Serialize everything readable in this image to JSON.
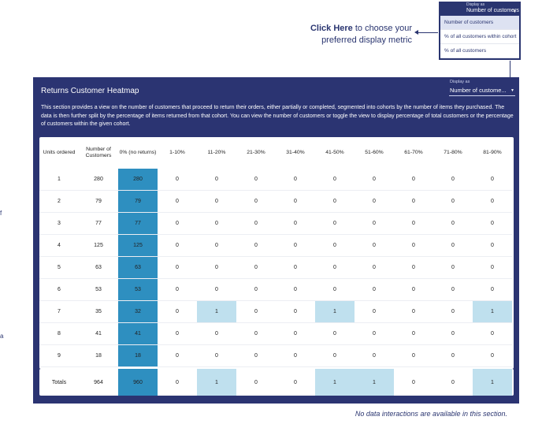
{
  "popup": {
    "label": "Display as",
    "value": "Number of customers",
    "options": [
      "Number of customers",
      "% of all customers within cohort",
      "% of all customers"
    ]
  },
  "callout": {
    "bold": "Click Here",
    "text": " to choose your preferred display metric"
  },
  "panel": {
    "title": "Returns Customer Heatmap",
    "select_label": "Display as",
    "select_value": "Number of custome...",
    "description": "This section provides a view on the number of customers that proceed to return their orders, either partially or completed, segmented into cohorts by the number of items they purchased. The data is then further split by the percentage of items returned from that cohort. You can view the number of customers or toggle the view to display percentage of total customers or the percentage of customers within the given cohort."
  },
  "table": {
    "headers": [
      "Units ordered",
      "Number of Customers",
      "0% (no returns)",
      "1-10%",
      "11-20%",
      "21-30%",
      "31-40%",
      "41-50%",
      "51-60%",
      "61-70%",
      "71-80%",
      "81-90%"
    ],
    "rows": [
      [
        "1",
        "280",
        "280",
        "0",
        "0",
        "0",
        "0",
        "0",
        "0",
        "0",
        "0",
        "0"
      ],
      [
        "2",
        "79",
        "79",
        "0",
        "0",
        "0",
        "0",
        "0",
        "0",
        "0",
        "0",
        "0"
      ],
      [
        "3",
        "77",
        "77",
        "0",
        "0",
        "0",
        "0",
        "0",
        "0",
        "0",
        "0",
        "0"
      ],
      [
        "4",
        "125",
        "125",
        "0",
        "0",
        "0",
        "0",
        "0",
        "0",
        "0",
        "0",
        "0"
      ],
      [
        "5",
        "63",
        "63",
        "0",
        "0",
        "0",
        "0",
        "0",
        "0",
        "0",
        "0",
        "0"
      ],
      [
        "6",
        "53",
        "53",
        "0",
        "0",
        "0",
        "0",
        "0",
        "0",
        "0",
        "0",
        "0"
      ],
      [
        "7",
        "35",
        "32",
        "0",
        "1",
        "0",
        "0",
        "1",
        "0",
        "0",
        "0",
        "1"
      ],
      [
        "8",
        "41",
        "41",
        "0",
        "0",
        "0",
        "0",
        "0",
        "0",
        "0",
        "0",
        "0"
      ],
      [
        "9",
        "18",
        "18",
        "0",
        "0",
        "0",
        "0",
        "0",
        "0",
        "0",
        "0",
        "0"
      ]
    ],
    "totals": [
      "Totals",
      "964",
      "960",
      "0",
      "1",
      "0",
      "0",
      "1",
      "1",
      "0",
      "0",
      "1"
    ]
  },
  "colors": {
    "heat_high": "#2e8fc0",
    "heat_low": "#bfe0ee",
    "panel_bg": "#2b3472",
    "accent": "#2a3570"
  },
  "side_marks": [
    "f",
    "a"
  ],
  "footnote": "No data interactions are available in this section."
}
